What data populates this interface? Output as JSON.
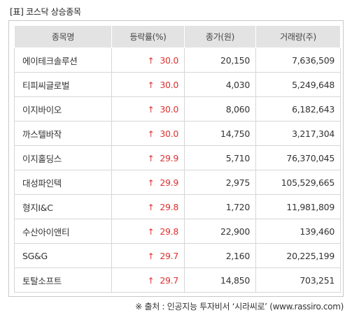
{
  "title": "[표] 코스닥 상승종목",
  "headers": {
    "name": "종목명",
    "rate": "등락률(%)",
    "price": "종가(원)",
    "volume": "거래량(주)"
  },
  "rows": [
    {
      "name": "에이테크솔루션",
      "rate": "30.0",
      "price": "20,150",
      "volume": "7,636,509"
    },
    {
      "name": "티피씨글로벌",
      "rate": "30.0",
      "price": "4,030",
      "volume": "5,249,648"
    },
    {
      "name": "이지바이오",
      "rate": "30.0",
      "price": "8,060",
      "volume": "6,182,643"
    },
    {
      "name": "까스텔바작",
      "rate": "30.0",
      "price": "14,750",
      "volume": "3,217,304"
    },
    {
      "name": "이지홀딩스",
      "rate": "29.9",
      "price": "5,710",
      "volume": "76,370,045"
    },
    {
      "name": "대성파인텍",
      "rate": "29.9",
      "price": "2,975",
      "volume": "105,529,665"
    },
    {
      "name": "형지I&C",
      "rate": "29.8",
      "price": "1,720",
      "volume": "11,981,809"
    },
    {
      "name": "수산아이앤티",
      "rate": "29.8",
      "price": "22,900",
      "volume": "139,460"
    },
    {
      "name": "SG&G",
      "rate": "29.7",
      "price": "2,160",
      "volume": "20,225,199"
    },
    {
      "name": "토탈소프트",
      "rate": "29.7",
      "price": "14,850",
      "volume": "703,251"
    }
  ],
  "arrow_symbol": "↑",
  "source": "※ 출처 : 인공지능 투자비서 ‘시라씨로’ (www.rassiro.com)",
  "colors": {
    "up": "#e0302f",
    "header_bg": "#e3e3e3"
  }
}
